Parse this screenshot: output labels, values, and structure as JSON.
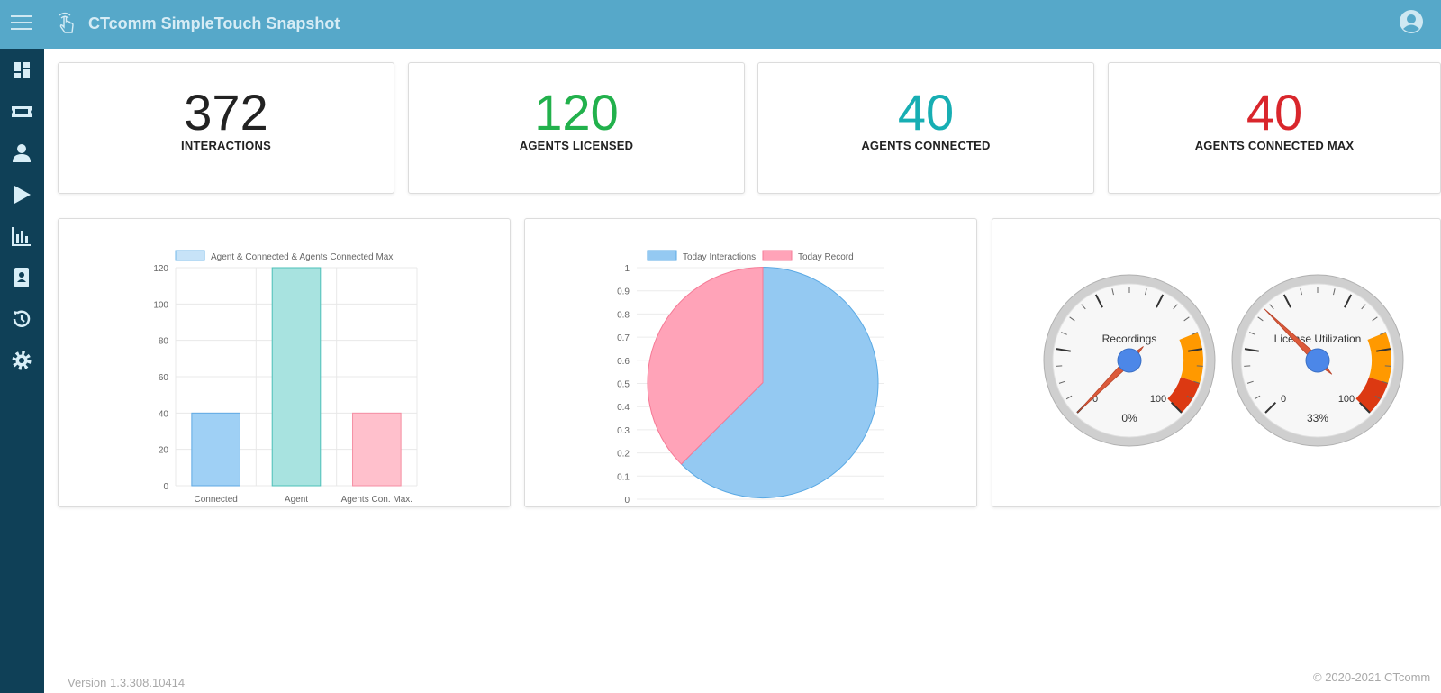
{
  "header": {
    "title": "CTcomm SimpleTouch Snapshot"
  },
  "sidebar": {
    "items": [
      {
        "icon": "dashboard-icon"
      },
      {
        "icon": "ticket-icon"
      },
      {
        "icon": "user-icon"
      },
      {
        "icon": "play-icon"
      },
      {
        "icon": "bar-chart-icon"
      },
      {
        "icon": "contact-book-icon"
      },
      {
        "icon": "history-icon"
      },
      {
        "icon": "settings-icon"
      }
    ]
  },
  "stats": [
    {
      "value": "372",
      "label": "INTERACTIONS",
      "color": "#222222"
    },
    {
      "value": "120",
      "label": "AGENTS LICENSED",
      "color": "#22b14c"
    },
    {
      "value": "40",
      "label": "AGENTS CONNECTED",
      "color": "#17aeb3"
    },
    {
      "value": "40",
      "label": "AGENTS CONNECTED MAX",
      "color": "#d9262c"
    }
  ],
  "chart_data": [
    {
      "type": "bar",
      "legend": [
        "Agent & Connected & Agents Connected Max"
      ],
      "categories": [
        "Connected",
        "Agent",
        "Agents Con. Max."
      ],
      "values": [
        40,
        120,
        40
      ],
      "colors": [
        "#9fd0f5",
        "#a8e3e0",
        "#ffc0cc"
      ],
      "ylim": [
        0,
        120
      ],
      "yticks": [
        "0",
        "20",
        "40",
        "60",
        "80",
        "100",
        "120"
      ],
      "grid": true
    },
    {
      "type": "pie",
      "legend": [
        "Today Interactions",
        "Today Record"
      ],
      "values": [
        0.625,
        0.375
      ],
      "colors": [
        "#94c9f2",
        "#ffa3b8"
      ],
      "yticks": [
        "0",
        "0.1",
        "0.2",
        "0.3",
        "0.4",
        "0.5",
        "0.6",
        "0.7",
        "0.8",
        "0.9",
        "1"
      ]
    }
  ],
  "gauges": [
    {
      "title": "Recordings",
      "min": "0",
      "max": "100",
      "value": 0,
      "readout": "0%"
    },
    {
      "title": "License Utilization",
      "min": "0",
      "max": "100",
      "value": 33,
      "readout": "33%"
    }
  ],
  "footer": {
    "version": "Version 1.3.308.10414",
    "copyright": "© 2020-2021 CTcomm"
  }
}
